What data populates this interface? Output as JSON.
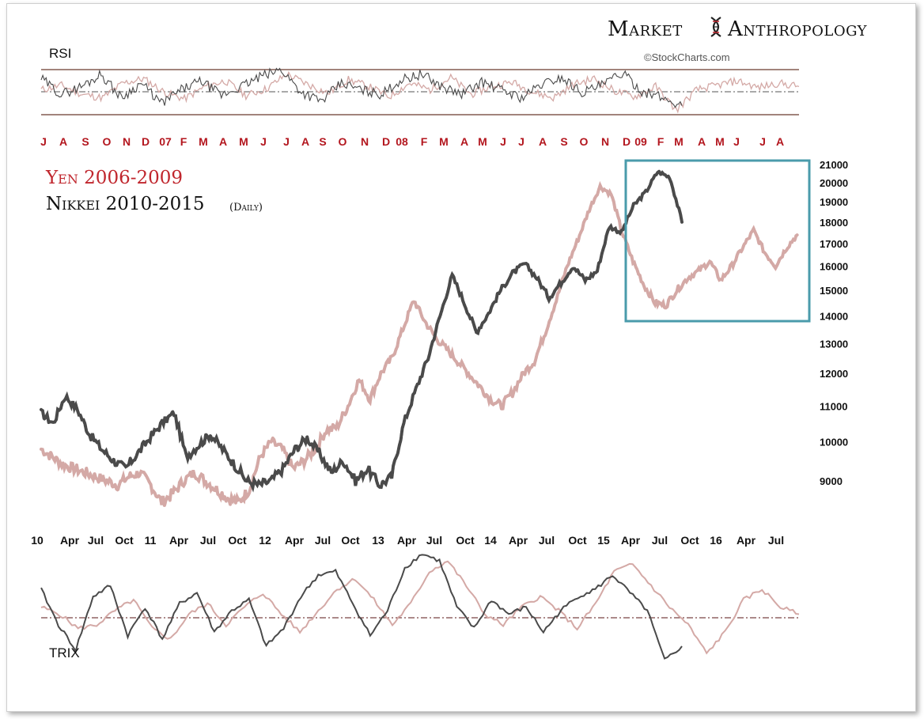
{
  "branding": {
    "title_left": "Market",
    "title_right": "Anthropology",
    "credit": "©StockCharts.com"
  },
  "legend": {
    "yen": "Yen 2006-2009",
    "nikkei": "Nikkei 2010-2015",
    "nikkei_note": "(Daily)"
  },
  "colors": {
    "yen": "#d4a9a6",
    "nikkei": "#4a4a4a",
    "overlap": "#5a1515",
    "box": "#4a9bab",
    "red_label": "#b3161e"
  },
  "chart_data": [
    {
      "type": "line",
      "panel": "RSI",
      "title": "RSI",
      "reference_lines": [
        "upper",
        "middle",
        "lower"
      ],
      "x_tick_labels": [
        "J",
        "A",
        "S",
        "O",
        "N",
        "D",
        "07",
        "F",
        "M",
        "A",
        "M",
        "J",
        "J",
        "A",
        "S",
        "O",
        "N",
        "D",
        "08",
        "F",
        "M",
        "A",
        "M",
        "J",
        "J",
        "A",
        "S",
        "O",
        "N",
        "D",
        "09",
        "F",
        "M",
        "A",
        "M",
        "J",
        "J",
        "A"
      ],
      "series": [
        {
          "name": "Yen 2006-2009",
          "values": [
            52,
            56,
            48,
            45,
            58,
            62,
            50,
            44,
            55,
            60,
            47,
            53,
            66,
            57,
            49,
            61,
            55,
            46,
            58,
            52,
            63,
            48,
            55,
            59,
            50,
            45,
            57,
            62,
            51,
            46,
            55,
            34,
            52,
            56,
            60,
            54,
            58,
            55
          ]
        },
        {
          "name": "Nikkei 2010-2015",
          "values": [
            62,
            48,
            55,
            66,
            45,
            58,
            40,
            52,
            60,
            47,
            55,
            64,
            70,
            50,
            42,
            58,
            52,
            48,
            61,
            66,
            55,
            48,
            59,
            52,
            45,
            57,
            63,
            50,
            56,
            67,
            51,
            45,
            38
          ]
        }
      ]
    },
    {
      "type": "line",
      "panel": "Price",
      "x_tick_labels": [
        "10",
        "Apr",
        "Jul",
        "Oct",
        "11",
        "Apr",
        "Jul",
        "Oct",
        "12",
        "Apr",
        "Jul",
        "Oct",
        "13",
        "Apr",
        "Jul",
        "Oct",
        "14",
        "Apr",
        "Jul",
        "Oct",
        "15",
        "Apr",
        "Jul",
        "Oct",
        "16",
        "Apr",
        "Jul"
      ],
      "y_tick_labels": [
        "21000",
        "20000",
        "19000",
        "18000",
        "17000",
        "16000",
        "15000",
        "14000",
        "13000",
        "12000",
        "11000",
        "10000",
        "9000"
      ],
      "ylim": [
        8000,
        21000
      ],
      "scale": "log",
      "series": [
        {
          "name": "Nikkei 2010-2015",
          "values": [
            10800,
            10500,
            11300,
            10900,
            10200,
            9800,
            9500,
            9300,
            9700,
            10100,
            10500,
            10800,
            9600,
            9900,
            10200,
            9800,
            9400,
            9000,
            8900,
            9000,
            9300,
            9800,
            10100,
            9700,
            9200,
            9500,
            9000,
            9300,
            8900,
            9100,
            10500,
            11500,
            12500,
            14000,
            15600,
            14500,
            13400,
            14100,
            15000,
            15700,
            16100,
            15500,
            14700,
            15300,
            16000,
            15400,
            15800,
            17800,
            17500,
            18800,
            19500,
            20600,
            20300,
            18000
          ]
        },
        {
          "name": "Yen 2006-2009",
          "values": [
            9800,
            9600,
            9400,
            9300,
            9200,
            9100,
            9000,
            8900,
            9100,
            9200,
            8900,
            8500,
            8700,
            9000,
            9200,
            9000,
            8800,
            8600,
            8500,
            8800,
            9600,
            10000,
            9800,
            9300,
            9500,
            9800,
            10300,
            10400,
            11000,
            11800,
            11200,
            12000,
            12500,
            13500,
            14600,
            13800,
            13200,
            12800,
            12400,
            12000,
            11600,
            11200,
            11000,
            11400,
            12000,
            12400,
            13400,
            14600,
            16000,
            17200,
            18600,
            19800,
            19400,
            17500,
            16200,
            15200,
            14500,
            14400,
            15000,
            15500,
            15800,
            16200,
            15400,
            16000,
            16800,
            17600,
            16600,
            16000,
            16800,
            17400
          ]
        }
      ],
      "highlight_box": {
        "x_range": [
          "Apr 15",
          "Jul 16"
        ],
        "y_range": [
          13800,
          21000
        ]
      }
    },
    {
      "type": "line",
      "panel": "TRIX",
      "title": "TRIX",
      "reference_lines": [
        "zero"
      ],
      "series": [
        {
          "name": "Nikkei 2010-2015",
          "values": [
            0.8,
            -0.2,
            -0.9,
            0.6,
            0.9,
            -0.5,
            0.3,
            -0.6,
            0.4,
            0.7,
            -0.4,
            0.2,
            0.5,
            -0.8,
            -0.3,
            0.6,
            1.2,
            1.3,
            0.4,
            -0.5,
            0.2,
            1.4,
            1.8,
            1.6,
            0.3,
            -0.3,
            0.5,
            0.1,
            0.3,
            -0.4,
            0.2,
            0.6,
            0.8,
            1.2,
            0.7,
            0.2,
            -1.2,
            -0.8
          ]
        },
        {
          "name": "Yen 2006-2009",
          "values": [
            0.3,
            0.1,
            -0.3,
            -0.2,
            0.2,
            0.5,
            -0.3,
            -0.6,
            0.1,
            0.4,
            -0.2,
            0.3,
            0.7,
            0.1,
            -0.4,
            0.2,
            0.8,
            1.1,
            0.5,
            -0.2,
            0.4,
            1.3,
            1.6,
            0.9,
            0.1,
            -0.2,
            0.3,
            0.6,
            0.2,
            -0.3,
            0.4,
            1.3,
            1.5,
            0.9,
            0.3,
            -0.2,
            -1.0,
            -0.4,
            0.5,
            0.8,
            0.3,
            0.1
          ]
        }
      ]
    }
  ]
}
